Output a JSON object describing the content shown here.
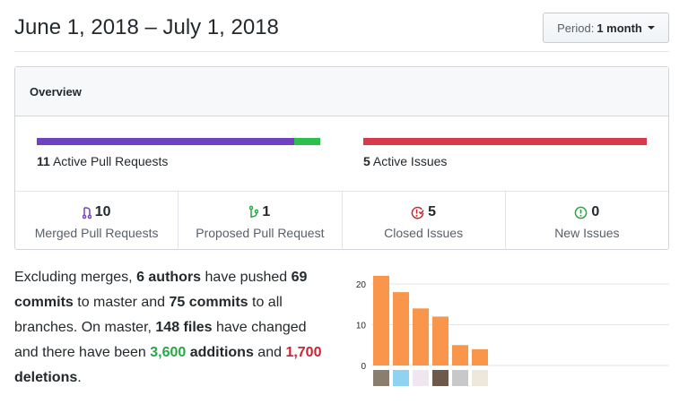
{
  "header": {
    "title": "June 1, 2018 – July 1, 2018",
    "period_label": "Period:",
    "period_value": "1 month"
  },
  "overview": {
    "title": "Overview",
    "pull_requests": {
      "count": "11",
      "label": "Active Pull Requests",
      "merged_fraction": 0.909,
      "colors": {
        "merged": "#6f42c1",
        "open": "#2cbe4e"
      }
    },
    "issues": {
      "count": "5",
      "label": "Active Issues",
      "closed_fraction": 1.0,
      "color": "#d73a49"
    },
    "stats": [
      {
        "icon": "git-merge-icon",
        "color": "#6f42c1",
        "value": "10",
        "label": "Merged Pull Requests"
      },
      {
        "icon": "git-pull-request-icon",
        "color": "#28a745",
        "value": "1",
        "label": "Proposed Pull Request"
      },
      {
        "icon": "issue-closed-icon",
        "color": "#cb2431",
        "value": "5",
        "label": "Closed Issues"
      },
      {
        "icon": "issue-opened-icon",
        "color": "#28a745",
        "value": "0",
        "label": "New Issues"
      }
    ]
  },
  "summary": {
    "t1": "Excluding merges, ",
    "authors": "6 authors",
    "t2": " have pushed ",
    "commits_master": "69 commits",
    "t3": " to master and ",
    "commits_all": "75 commits",
    "t4": " to all branches. On master, ",
    "files": "148 files",
    "t5": " have changed and there have been ",
    "additions_num": "3,600",
    "additions": " additions",
    "t6": " and ",
    "deletions_num": "1,700",
    "deletions": "deletions",
    "t7": "."
  },
  "chart_data": {
    "type": "bar",
    "values": [
      22,
      18,
      14,
      12,
      5,
      4
    ],
    "ylim": [
      0,
      20
    ],
    "yticks": [
      "0",
      "10",
      "20"
    ],
    "grid": true,
    "color": "#f9964c",
    "categories": [
      "author-1",
      "author-2",
      "author-3",
      "author-4",
      "author-5",
      "author-6"
    ]
  }
}
